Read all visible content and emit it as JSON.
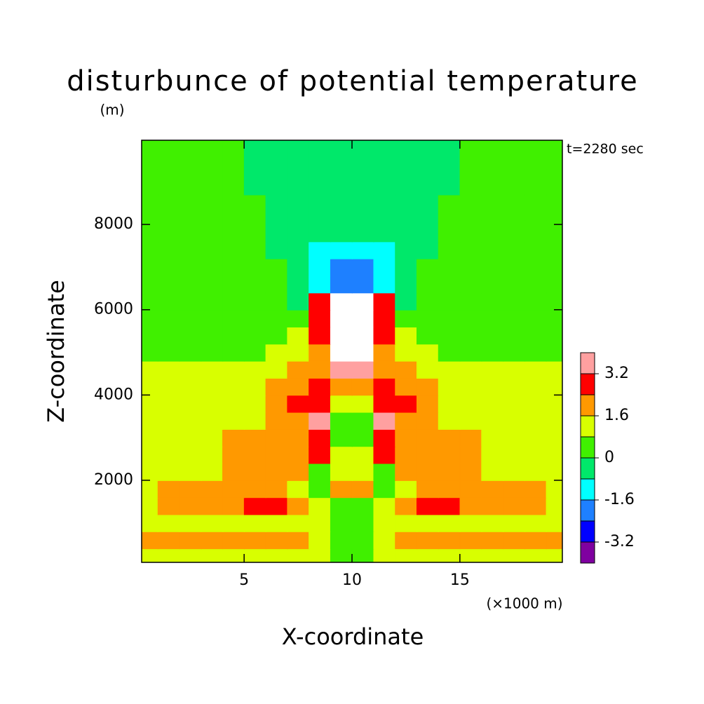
{
  "chart_data": {
    "type": "contour",
    "title": "disturbunce of potential temperature",
    "y_unit": "(m)",
    "annotation": "t=2280 sec",
    "xlabel": "X-coordinate",
    "ylabel": "Z-coordinate",
    "x_unit": "(×1000 m)",
    "xlim": [
      0.25,
      19.75
    ],
    "ylim": [
      75,
      9975
    ],
    "xticks": [
      5,
      10,
      15
    ],
    "yticks": [
      2000,
      4000,
      6000,
      8000
    ],
    "levels": [
      -4.0,
      -3.2,
      -2.4,
      -1.6,
      -0.8,
      0,
      0.8,
      1.6,
      2.4,
      3.2,
      4.0
    ],
    "colors": [
      "#7f00a0",
      "#0000ff",
      "#1e80ff",
      "#00ffff",
      "#00e86a",
      "#40f000",
      "#d8ff00",
      "#ff9900",
      "#ff0000",
      "#ffa0a0",
      "#ffffff"
    ],
    "colorbar_ticks": [
      -3.2,
      -1.6,
      0,
      1.6,
      3.2
    ],
    "x": [
      0.5,
      1.5,
      2.5,
      3.5,
      4.5,
      5.5,
      6.5,
      7.5,
      8.5,
      9.5,
      10.5,
      11.5,
      12.5,
      13.5,
      14.5,
      15.5,
      16.5,
      17.5,
      18.5,
      19.5
    ],
    "y": [
      200,
      600,
      1000,
      1400,
      1800,
      2200,
      2600,
      3000,
      3400,
      3800,
      4200,
      4600,
      5000,
      5400,
      5800,
      6200,
      6600,
      7000,
      7400,
      7800,
      8400,
      9000,
      9600
    ],
    "z": [
      [
        1.2,
        1.2,
        1.2,
        1.2,
        1.2,
        1.2,
        1.2,
        1.2,
        1.2,
        0.4,
        0.4,
        1.2,
        1.2,
        1.2,
        1.2,
        1.2,
        1.2,
        1.2,
        1.2,
        1.2
      ],
      [
        2,
        2,
        2,
        2,
        2,
        2,
        2,
        2,
        1.2,
        0.4,
        0.4,
        1.2,
        2,
        2,
        2,
        2,
        2,
        2,
        2,
        2
      ],
      [
        1.2,
        1.2,
        1.2,
        1.2,
        1.2,
        1.2,
        1.2,
        1.2,
        1.2,
        0.4,
        0.4,
        1.2,
        1.2,
        1.2,
        1.2,
        1.2,
        1.2,
        1.2,
        1.2,
        1.2
      ],
      [
        1.2,
        2,
        2,
        2,
        2,
        2.8,
        2.8,
        2,
        1.2,
        0.4,
        0.4,
        1.2,
        2,
        2.8,
        2.8,
        2,
        2,
        2,
        2,
        1.2
      ],
      [
        1.2,
        2,
        2,
        2,
        2,
        2,
        2,
        1.2,
        0.4,
        2,
        2,
        0.4,
        1.2,
        2,
        2,
        2,
        2,
        2,
        2,
        1.2
      ],
      [
        1.2,
        1.2,
        1.2,
        1.2,
        2,
        2,
        2,
        2,
        0.4,
        1.2,
        1.2,
        0.4,
        2,
        2,
        2,
        2,
        1.2,
        1.2,
        1.2,
        1.2
      ],
      [
        1.2,
        1.2,
        1.2,
        1.2,
        2,
        2,
        2,
        2,
        2.8,
        1.2,
        1.2,
        2.8,
        2,
        2,
        2,
        2,
        1.2,
        1.2,
        1.2,
        1.2
      ],
      [
        1.2,
        1.2,
        1.2,
        1.2,
        2,
        2,
        2,
        2,
        2.8,
        0.4,
        0.4,
        2.8,
        2,
        2,
        2,
        2,
        1.2,
        1.2,
        1.2,
        1.2
      ],
      [
        1.2,
        1.2,
        1.2,
        1.2,
        1.2,
        1.2,
        2,
        2,
        3.6,
        0.4,
        0.4,
        3.6,
        2,
        2,
        1.2,
        1.2,
        1.2,
        1.2,
        1.2,
        1.2
      ],
      [
        1.2,
        1.2,
        1.2,
        1.2,
        1.2,
        1.2,
        2,
        2.8,
        2.8,
        1.2,
        1.2,
        2.8,
        2.8,
        2,
        1.2,
        1.2,
        1.2,
        1.2,
        1.2,
        1.2
      ],
      [
        1.2,
        1.2,
        1.2,
        1.2,
        1.2,
        1.2,
        2,
        2,
        2.8,
        2,
        2,
        2.8,
        2,
        2,
        1.2,
        1.2,
        1.2,
        1.2,
        1.2,
        1.2
      ],
      [
        1.2,
        1.2,
        1.2,
        1.2,
        1.2,
        1.2,
        1.2,
        2,
        2,
        3.6,
        3.6,
        2,
        2,
        1.2,
        1.2,
        1.2,
        1.2,
        1.2,
        1.2,
        1.2
      ],
      [
        0.4,
        0.4,
        0.4,
        0.4,
        0.4,
        0.4,
        1.2,
        1.2,
        2,
        4.5,
        4.5,
        2,
        1.2,
        1.2,
        0.4,
        0.4,
        0.4,
        0.4,
        0.4,
        0.4
      ],
      [
        0.4,
        0.4,
        0.4,
        0.4,
        0.4,
        0.4,
        0.4,
        1.2,
        2.8,
        4.5,
        4.5,
        2.8,
        1.2,
        0.4,
        0.4,
        0.4,
        0.4,
        0.4,
        0.4,
        0.4
      ],
      [
        0.4,
        0.4,
        0.4,
        0.4,
        0.4,
        0.4,
        0.4,
        0.4,
        2.8,
        4.5,
        4.5,
        2.8,
        0.4,
        0.4,
        0.4,
        0.4,
        0.4,
        0.4,
        0.4,
        0.4
      ],
      [
        0.4,
        0.4,
        0.4,
        0.4,
        0.4,
        0.4,
        0.4,
        -0.4,
        2.8,
        4.5,
        4.5,
        2.8,
        -0.4,
        0.4,
        0.4,
        0.4,
        0.4,
        0.4,
        0.4,
        0.4
      ],
      [
        0.4,
        0.4,
        0.4,
        0.4,
        0.4,
        0.4,
        0.4,
        -0.4,
        -1.2,
        -2,
        -2,
        -1.2,
        -0.4,
        0.4,
        0.4,
        0.4,
        0.4,
        0.4,
        0.4,
        0.4
      ],
      [
        0.4,
        0.4,
        0.4,
        0.4,
        0.4,
        0.4,
        0.4,
        -0.4,
        -1.2,
        -2,
        -2,
        -1.2,
        -0.4,
        0.4,
        0.4,
        0.4,
        0.4,
        0.4,
        0.4,
        0.4
      ],
      [
        0.4,
        0.4,
        0.4,
        0.4,
        0.4,
        0.4,
        -0.4,
        -0.4,
        -1.2,
        -1.2,
        -1.2,
        -1.2,
        -0.4,
        -0.4,
        0.4,
        0.4,
        0.4,
        0.4,
        0.4,
        0.4
      ],
      [
        0.4,
        0.4,
        0.4,
        0.4,
        0.4,
        0.4,
        -0.4,
        -0.4,
        -0.4,
        -0.4,
        -0.4,
        -0.4,
        -0.4,
        -0.4,
        0.4,
        0.4,
        0.4,
        0.4,
        0.4,
        0.4
      ],
      [
        0.4,
        0.4,
        0.4,
        0.4,
        0.4,
        0.4,
        -0.4,
        -0.4,
        -0.4,
        -0.4,
        -0.4,
        -0.4,
        -0.4,
        -0.4,
        0.4,
        0.4,
        0.4,
        0.4,
        0.4,
        0.4
      ],
      [
        0.4,
        0.4,
        0.4,
        0.4,
        0.4,
        -0.4,
        -0.4,
        -0.4,
        -0.4,
        -0.4,
        -0.4,
        -0.4,
        -0.4,
        -0.4,
        -0.4,
        0.4,
        0.4,
        0.4,
        0.4,
        0.4
      ],
      [
        0.4,
        0.4,
        0.4,
        0.4,
        0.4,
        -0.4,
        -0.4,
        -0.4,
        -0.4,
        -0.4,
        -0.4,
        -0.4,
        -0.4,
        -0.4,
        -0.4,
        0.4,
        0.4,
        0.4,
        0.4,
        0.4
      ]
    ]
  }
}
